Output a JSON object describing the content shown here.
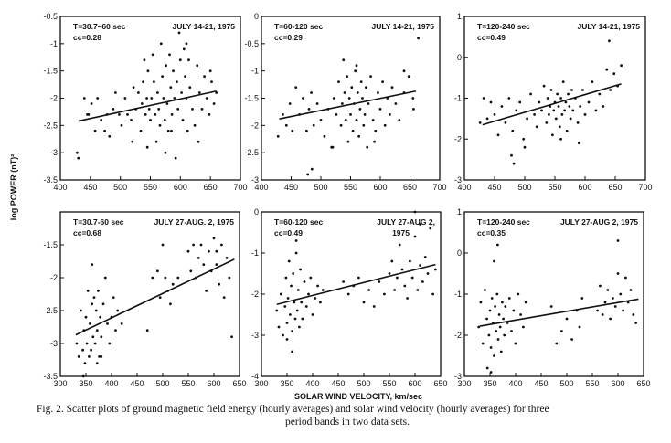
{
  "y_axis_label": "log POWER (nT)²",
  "x_axis_label": "SOLAR WIND VELOCITY, km/sec",
  "caption": {
    "line1": "Fig. 2.   Scatter plots of ground magnetic field energy (hourly averages) and solar wind velocity (hourly averages) for three",
    "line2": "period bands in two data sets."
  },
  "chart_data": [
    {
      "type": "scatter",
      "annotations": [
        "T=30.7–60 sec",
        "cc=0.28",
        "JULY 14-21, 1975"
      ],
      "xlim": [
        400,
        700
      ],
      "ylim": [
        -3.5,
        -0.5
      ],
      "xticks": [
        400,
        450,
        500,
        550,
        600,
        650,
        700
      ],
      "yticks": [
        -0.5,
        -1.0,
        -1.5,
        -2.0,
        -2.5,
        -3.0,
        -3.5
      ],
      "x": [
        428,
        440,
        447,
        452,
        458,
        462,
        468,
        474,
        478,
        482,
        488,
        492,
        498,
        502,
        508,
        512,
        518,
        522,
        526,
        530,
        534,
        536,
        538,
        540,
        542,
        544,
        546,
        548,
        550,
        552,
        554,
        556,
        558,
        560,
        562,
        564,
        566,
        568,
        570,
        572,
        574,
        576,
        578,
        580,
        582,
        584,
        586,
        588,
        590,
        592,
        594,
        596,
        598,
        600,
        602,
        604,
        606,
        608,
        610,
        612,
        614,
        616,
        620,
        624,
        628,
        632,
        636,
        640,
        644,
        648,
        652,
        656,
        660,
        430,
        445,
        520,
        545,
        575,
        585,
        610,
        630,
        650
      ],
      "y": [
        -3.0,
        -2.0,
        -2.3,
        -2.1,
        -2.6,
        -2.0,
        -2.4,
        -2.6,
        -2.3,
        -2.7,
        -2.2,
        -1.9,
        -2.3,
        -2.5,
        -2.0,
        -2.3,
        -2.4,
        -1.8,
        -2.2,
        -1.9,
        -2.6,
        -2.1,
        -1.7,
        -1.3,
        -2.3,
        -2.0,
        -1.5,
        -2.2,
        -2.4,
        -2.0,
        -1.2,
        -1.7,
        -2.3,
        -2.8,
        -1.9,
        -2.2,
        -2.5,
        -1.0,
        -1.6,
        -2.0,
        -2.4,
        -1.4,
        -2.1,
        -2.6,
        -1.2,
        -1.8,
        -2.3,
        -1.5,
        -2.0,
        -3.1,
        -1.7,
        -2.2,
        -0.8,
        -1.3,
        -1.9,
        -2.4,
        -1.1,
        -1.6,
        -2.0,
        -2.6,
        -1.3,
        -1.8,
        -2.2,
        -2.5,
        -1.4,
        -1.9,
        -2.2,
        -1.6,
        -2.0,
        -2.3,
        -1.7,
        -2.1,
        -1.9,
        -3.1,
        -2.3,
        -2.8,
        -2.9,
        -3.0,
        -2.6,
        -1.0,
        -2.8,
        -1.5
      ],
      "fit": {
        "x": [
          430,
          660
        ],
        "y": [
          -2.42,
          -1.87
        ]
      }
    },
    {
      "type": "scatter",
      "annotations": [
        "T=60-120 sec",
        "cc=0.29",
        "JULY 14-21, 1975"
      ],
      "xlim": [
        400,
        700
      ],
      "ylim": [
        -3.0,
        0
      ],
      "xticks": [
        400,
        450,
        500,
        550,
        600,
        650,
        700
      ],
      "yticks": [
        0,
        -0.5,
        -1.0,
        -1.5,
        -2.0,
        -2.5,
        -3.0
      ],
      "x": [
        428,
        436,
        442,
        448,
        452,
        458,
        464,
        470,
        476,
        480,
        484,
        488,
        494,
        500,
        506,
        512,
        518,
        522,
        526,
        530,
        534,
        536,
        538,
        540,
        542,
        544,
        546,
        548,
        550,
        552,
        554,
        556,
        558,
        560,
        562,
        564,
        566,
        568,
        570,
        572,
        574,
        576,
        578,
        580,
        584,
        588,
        592,
        596,
        600,
        604,
        608,
        612,
        616,
        620,
        626,
        632,
        640,
        648,
        656,
        664,
        478,
        485,
        520,
        560,
        590,
        640,
        655
      ],
      "y": [
        -2.2,
        -1.8,
        -2.0,
        -1.6,
        -2.1,
        -1.3,
        -1.8,
        -1.5,
        -2.1,
        -1.7,
        -1.4,
        -2.0,
        -1.6,
        -1.9,
        -2.2,
        -1.7,
        -2.4,
        -1.5,
        -1.8,
        -1.2,
        -2.0,
        -1.6,
        -0.8,
        -1.4,
        -1.9,
        -1.1,
        -2.3,
        -1.5,
        -1.8,
        -1.3,
        -2.1,
        -1.6,
        -1.0,
        -1.9,
        -1.4,
        -2.2,
        -1.7,
        -1.2,
        -1.5,
        -2.0,
        -1.8,
        -1.3,
        -2.4,
        -1.6,
        -1.1,
        -1.9,
        -2.1,
        -1.4,
        -1.7,
        -1.2,
        -2.0,
        -1.5,
        -1.8,
        -1.3,
        -1.6,
        -1.9,
        -1.4,
        -1.1,
        -1.7,
        -0.4,
        -2.9,
        -2.8,
        -2.4,
        -0.9,
        -2.3,
        -1.0,
        -1.5
      ],
      "fit": {
        "x": [
          430,
          660
        ],
        "y": [
          -1.88,
          -1.37
        ]
      }
    },
    {
      "type": "scatter",
      "annotations": [
        "T=120-240 sec",
        "cc=0.49",
        "JULY 14-21, 1975"
      ],
      "xlim": [
        400,
        700
      ],
      "ylim": [
        -3,
        1
      ],
      "xticks": [
        400,
        450,
        500,
        550,
        600,
        650,
        700
      ],
      "yticks": [
        1,
        0,
        -1,
        -2,
        -3
      ],
      "x": [
        426,
        432,
        438,
        444,
        450,
        456,
        462,
        468,
        474,
        480,
        486,
        492,
        498,
        504,
        510,
        516,
        520,
        524,
        528,
        532,
        536,
        538,
        540,
        542,
        544,
        546,
        548,
        550,
        552,
        554,
        556,
        558,
        560,
        562,
        564,
        566,
        568,
        570,
        572,
        574,
        576,
        578,
        580,
        584,
        588,
        592,
        596,
        600,
        606,
        612,
        618,
        624,
        630,
        636,
        642,
        648,
        654,
        660,
        478,
        482,
        500,
        560,
        590,
        640
      ],
      "y": [
        -1.6,
        -1.0,
        -1.5,
        -1.1,
        -1.4,
        -1.9,
        -1.2,
        -1.6,
        -1.0,
        -1.8,
        -1.3,
        -1.1,
        -2.0,
        -1.5,
        -0.9,
        -1.4,
        -1.7,
        -1.1,
        -1.3,
        -0.7,
        -1.6,
        -1.0,
        -1.4,
        -1.2,
        -0.8,
        -1.9,
        -1.3,
        -1.1,
        -1.5,
        -0.9,
        -1.2,
        -1.7,
        -1.0,
        -1.4,
        -0.6,
        -1.3,
        -1.1,
        -1.8,
        -0.9,
        -1.2,
        -1.5,
        -0.8,
        -1.3,
        -1.0,
        -1.6,
        -1.2,
        -0.8,
        -1.4,
        -1.1,
        -0.6,
        -1.3,
        -0.9,
        -1.2,
        -0.3,
        -0.8,
        -0.4,
        -0.7,
        -0.2,
        -2.4,
        -2.6,
        -2.2,
        -2.0,
        -2.1,
        0.4
      ],
      "fit": {
        "x": [
          430,
          660
        ],
        "y": [
          -1.65,
          -0.65
        ]
      }
    },
    {
      "type": "scatter",
      "annotations": [
        "T=30.7-60 sec",
        "cc=0.68",
        "JULY 27-AUG. 2, 1975"
      ],
      "xlim": [
        300,
        650
      ],
      "ylim": [
        -3.5,
        -1.0
      ],
      "xticks": [
        300,
        350,
        400,
        450,
        500,
        550,
        600,
        650
      ],
      "yticks": [
        -1.5,
        -2.0,
        -2.5,
        -3.0,
        -3.5
      ],
      "x": [
        332,
        336,
        340,
        344,
        346,
        348,
        350,
        352,
        354,
        356,
        358,
        360,
        362,
        364,
        366,
        368,
        370,
        372,
        374,
        376,
        378,
        380,
        384,
        388,
        392,
        396,
        400,
        404,
        408,
        412,
        420,
        470,
        480,
        490,
        495,
        500,
        505,
        510,
        515,
        520,
        530,
        550,
        555,
        560,
        565,
        570,
        575,
        580,
        585,
        590,
        595,
        600,
        605,
        610,
        615,
        620,
        625,
        630,
        635,
        345,
        362,
        372,
        380,
        605
      ],
      "y": [
        -3.0,
        -3.2,
        -2.5,
        -3.1,
        -2.8,
        -3.3,
        -2.6,
        -3.0,
        -2.2,
        -3.2,
        -2.7,
        -3.1,
        -2.4,
        -2.9,
        -2.3,
        -3.0,
        -2.5,
        -2.8,
        -2.2,
        -3.2,
        -2.6,
        -2.9,
        -2.4,
        -2.0,
        -2.7,
        -3.0,
        -2.6,
        -2.3,
        -2.8,
        -2.5,
        -2.7,
        -2.8,
        -2.0,
        -1.9,
        -2.3,
        -1.5,
        -2.0,
        -2.2,
        -2.4,
        -2.1,
        -2.0,
        -1.6,
        -1.9,
        -1.5,
        -2.0,
        -1.7,
        -1.5,
        -1.8,
        -2.2,
        -1.6,
        -1.9,
        -1.4,
        -1.8,
        -2.1,
        -1.5,
        -2.3,
        -1.7,
        -2.0,
        -2.9,
        -3.5,
        -1.8,
        -3.3,
        -3.2,
        -1.6
      ],
      "fit": {
        "x": [
          330,
          640
        ],
        "y": [
          -2.87,
          -1.72
        ]
      }
    },
    {
      "type": "scatter",
      "annotations": [
        "T=60-120 sec",
        "cc=0.49",
        "JULY 27-AUG 2,",
        "1975"
      ],
      "xlim": [
        300,
        650
      ],
      "ylim": [
        -4,
        0
      ],
      "xticks": [
        300,
        350,
        400,
        450,
        500,
        550,
        600,
        650
      ],
      "yticks": [
        0,
        -1,
        -2,
        -3,
        -4
      ],
      "x": [
        330,
        334,
        338,
        342,
        346,
        348,
        350,
        352,
        354,
        356,
        358,
        360,
        362,
        364,
        366,
        368,
        370,
        372,
        374,
        376,
        378,
        380,
        384,
        388,
        392,
        396,
        400,
        405,
        410,
        415,
        420,
        460,
        470,
        480,
        490,
        500,
        510,
        520,
        530,
        540,
        550,
        555,
        560,
        565,
        570,
        575,
        580,
        585,
        590,
        595,
        600,
        605,
        610,
        615,
        620,
        625,
        630,
        635,
        350,
        360,
        368,
        600,
        610,
        640
      ],
      "y": [
        -2.4,
        -2.8,
        -2.0,
        -3.0,
        -2.3,
        -1.6,
        -2.7,
        -2.1,
        -1.2,
        -2.5,
        -1.8,
        -2.9,
        -1.5,
        -2.2,
        -2.6,
        -1.0,
        -2.4,
        -1.9,
        -2.8,
        -1.4,
        -2.2,
        -2.6,
        -1.7,
        -2.3,
        -2.0,
        -1.6,
        -2.5,
        -2.1,
        -1.8,
        -2.2,
        -1.9,
        -1.7,
        -2.0,
        -1.8,
        -1.6,
        -2.2,
        -1.9,
        -2.3,
        -1.7,
        -2.0,
        -1.5,
        -1.2,
        -1.9,
        -1.6,
        -0.8,
        -1.4,
        -1.8,
        -2.1,
        -1.2,
        -1.6,
        -0.6,
        -1.9,
        -1.3,
        -1.7,
        -1.1,
        -1.5,
        -0.4,
        -2.0,
        -3.1,
        -3.4,
        -0.7,
        0,
        -0.3,
        -1.4
      ],
      "fit": {
        "x": [
          330,
          640
        ],
        "y": [
          -2.25,
          -1.28
        ]
      }
    },
    {
      "type": "scatter",
      "annotations": [
        "T=120-240 sec",
        "cc=0.35",
        "JULY 27-AUG 2, 1975"
      ],
      "xlim": [
        300,
        650
      ],
      "ylim": [
        -3,
        1
      ],
      "xticks": [
        300,
        350,
        400,
        450,
        500,
        550,
        600,
        650
      ],
      "yticks": [
        1,
        0,
        -1,
        -2,
        -3
      ],
      "x": [
        328,
        332,
        336,
        340,
        344,
        348,
        350,
        352,
        354,
        356,
        358,
        360,
        362,
        364,
        366,
        368,
        370,
        372,
        374,
        376,
        378,
        380,
        384,
        388,
        392,
        396,
        400,
        405,
        410,
        415,
        420,
        470,
        480,
        490,
        500,
        510,
        520,
        525,
        530,
        560,
        565,
        570,
        575,
        580,
        585,
        590,
        595,
        600,
        605,
        610,
        615,
        620,
        625,
        630,
        635,
        345,
        352,
        358,
        365,
        400,
        600
      ],
      "y": [
        -1.8,
        -1.2,
        -2.2,
        -0.9,
        -1.6,
        -2.0,
        -1.4,
        -2.3,
        -1.1,
        -1.7,
        -2.5,
        -1.3,
        -1.9,
        -1.0,
        -2.1,
        -1.5,
        -1.8,
        -2.4,
        -1.2,
        -1.6,
        -2.0,
        -1.3,
        -1.7,
        -1.1,
        -1.9,
        -1.4,
        -2.2,
        -1.0,
        -1.5,
        -1.8,
        -1.2,
        -1.3,
        -2.2,
        -1.9,
        -1.6,
        -2.1,
        -1.4,
        -1.8,
        -1.1,
        -1.4,
        -0.8,
        -1.5,
        -1.2,
        -0.9,
        -1.6,
        -1.1,
        -1.3,
        -0.5,
        -1.0,
        -1.4,
        -0.6,
        -1.2,
        -0.9,
        -1.5,
        -1.7,
        -2.8,
        -2.9,
        -0.2,
        0.2,
        -2.2,
        0.3
      ],
      "fit": {
        "x": [
          330,
          640
        ],
        "y": [
          -1.78,
          -1.12
        ]
      }
    }
  ]
}
